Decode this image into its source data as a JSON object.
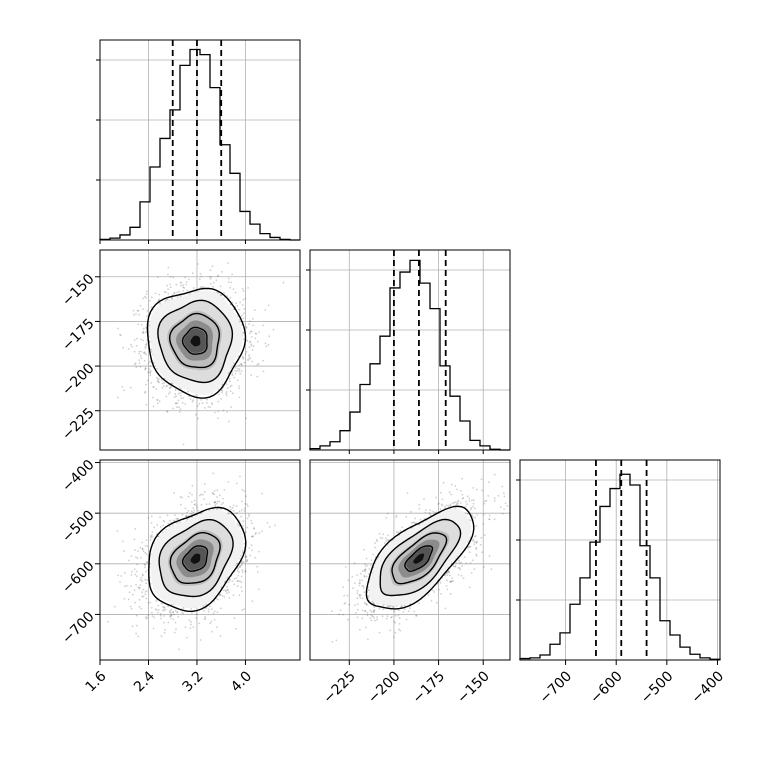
{
  "chart_data": {
    "type": "corner",
    "colors": {
      "line": "#000000",
      "grid": "#b0b0b0",
      "points": "#555555",
      "density_max": "#111111"
    },
    "grid": true,
    "parameters": [
      {
        "id": "p0",
        "range": [
          1.6,
          4.9
        ],
        "ticks": [
          1.6,
          2.4,
          3.2,
          4.0
        ],
        "tick_labels": [
          "1.6",
          "2.4",
          "3.2",
          "4.0"
        ],
        "quantiles": [
          2.8,
          3.2,
          3.6
        ],
        "histogram": {
          "bin_edges": [
            1.6,
            1.765,
            1.93,
            2.095,
            2.26,
            2.425,
            2.59,
            2.755,
            2.92,
            3.085,
            3.25,
            3.415,
            3.58,
            3.745,
            3.91,
            4.075,
            4.24,
            4.405,
            4.57,
            4.735,
            4.9
          ],
          "counts": [
            1,
            3,
            8,
            20,
            60,
            115,
            160,
            205,
            275,
            300,
            292,
            240,
            150,
            105,
            45,
            25,
            10,
            4,
            1,
            0
          ],
          "ymax": 315
        }
      },
      {
        "id": "p1",
        "range": [
          -247,
          -135
        ],
        "ticks": [
          -150,
          -175,
          -200,
          -225
        ],
        "tick_labels": [
          "−150",
          "−175",
          "−200",
          "−225"
        ],
        "x_ticks": [
          -225,
          -200,
          -175,
          -150
        ],
        "x_tick_labels": [
          "−225",
          "−200",
          "−175",
          "−150"
        ],
        "quantiles": [
          -200,
          -186,
          -171
        ],
        "histogram": {
          "bin_edges": [
            -247,
            -241.4,
            -235.8,
            -230.2,
            -224.6,
            -219,
            -213.4,
            -207.8,
            -202.2,
            -196.6,
            -191,
            -185.4,
            -179.8,
            -174.2,
            -168.6,
            -163,
            -157.4,
            -151.8,
            -146.2,
            -140.6,
            -135
          ],
          "counts": [
            2,
            6,
            12,
            28,
            55,
            95,
            125,
            165,
            235,
            258,
            275,
            242,
            205,
            122,
            78,
            42,
            14,
            6,
            1,
            0
          ],
          "ymax": 290
        }
      },
      {
        "id": "p2",
        "range": [
          -790,
          -395
        ],
        "ticks": [
          -700,
          -600,
          -500,
          -400
        ],
        "tick_labels": [
          "−700",
          "−600",
          "−500",
          "−400"
        ],
        "quantiles": [
          -640,
          -590,
          -540
        ],
        "histogram": {
          "bin_edges": [
            -790,
            -770.25,
            -750.5,
            -730.75,
            -711,
            -691.25,
            -671.5,
            -651.75,
            -632,
            -612.25,
            -592.5,
            -572.75,
            -553,
            -533.25,
            -513.5,
            -493.75,
            -474,
            -454.25,
            -434.5,
            -414.75,
            -395
          ],
          "counts": [
            2,
            3,
            7,
            22,
            38,
            78,
            115,
            165,
            215,
            240,
            260,
            245,
            160,
            115,
            55,
            35,
            18,
            8,
            3,
            1
          ],
          "ymax": 280
        }
      }
    ],
    "joint": [
      {
        "x_param": "p0",
        "y_param": "p1",
        "center": [
          3.18,
          -186
        ],
        "spread": [
          0.4,
          15
        ],
        "correlation": 0.0,
        "contours_sigma": [
          0.5,
          1.0,
          1.5,
          2.0
        ]
      },
      {
        "x_param": "p0",
        "y_param": "p2",
        "center": [
          3.18,
          -590
        ],
        "spread": [
          0.4,
          50
        ],
        "correlation": 0.3,
        "contours_sigma": [
          0.5,
          1.0,
          1.5,
          2.0
        ]
      },
      {
        "x_param": "p1",
        "y_param": "p2",
        "center": [
          -186,
          -590
        ],
        "spread": [
          15,
          50
        ],
        "correlation": 0.65,
        "contours_sigma": [
          0.5,
          1.0,
          1.5,
          2.0
        ]
      }
    ]
  }
}
